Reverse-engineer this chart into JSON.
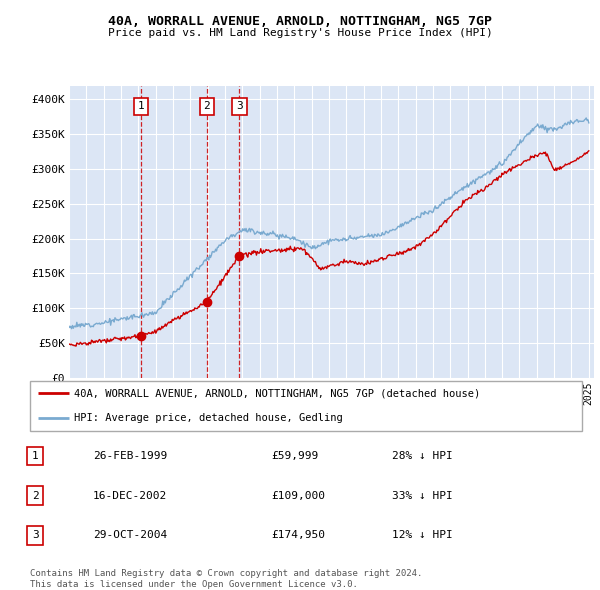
{
  "title": "40A, WORRALL AVENUE, ARNOLD, NOTTINGHAM, NG5 7GP",
  "subtitle": "Price paid vs. HM Land Registry's House Price Index (HPI)",
  "plot_background": "#dce6f5",
  "ylim": [
    0,
    420000
  ],
  "yticks": [
    0,
    50000,
    100000,
    150000,
    200000,
    250000,
    300000,
    350000,
    400000
  ],
  "ytick_labels": [
    "£0",
    "£50K",
    "£100K",
    "£150K",
    "£200K",
    "£250K",
    "£300K",
    "£350K",
    "£400K"
  ],
  "x_start_year": 1995,
  "x_end_year": 2025,
  "legend_label_red": "40A, WORRALL AVENUE, ARNOLD, NOTTINGHAM, NG5 7GP (detached house)",
  "legend_label_blue": "HPI: Average price, detached house, Gedling",
  "transactions": [
    {
      "num": 1,
      "date": "26-FEB-1999",
      "price": 59999,
      "year": 1999.15,
      "hpi_pct": "28% ↓ HPI"
    },
    {
      "num": 2,
      "date": "16-DEC-2002",
      "price": 109000,
      "year": 2002.96,
      "hpi_pct": "33% ↓ HPI"
    },
    {
      "num": 3,
      "date": "29-OCT-2004",
      "price": 174950,
      "year": 2004.83,
      "hpi_pct": "12% ↓ HPI"
    }
  ],
  "footer": "Contains HM Land Registry data © Crown copyright and database right 2024.\nThis data is licensed under the Open Government Licence v3.0.",
  "red_color": "#cc0000",
  "blue_color": "#7aaad0",
  "dashed_color": "#cc0000"
}
